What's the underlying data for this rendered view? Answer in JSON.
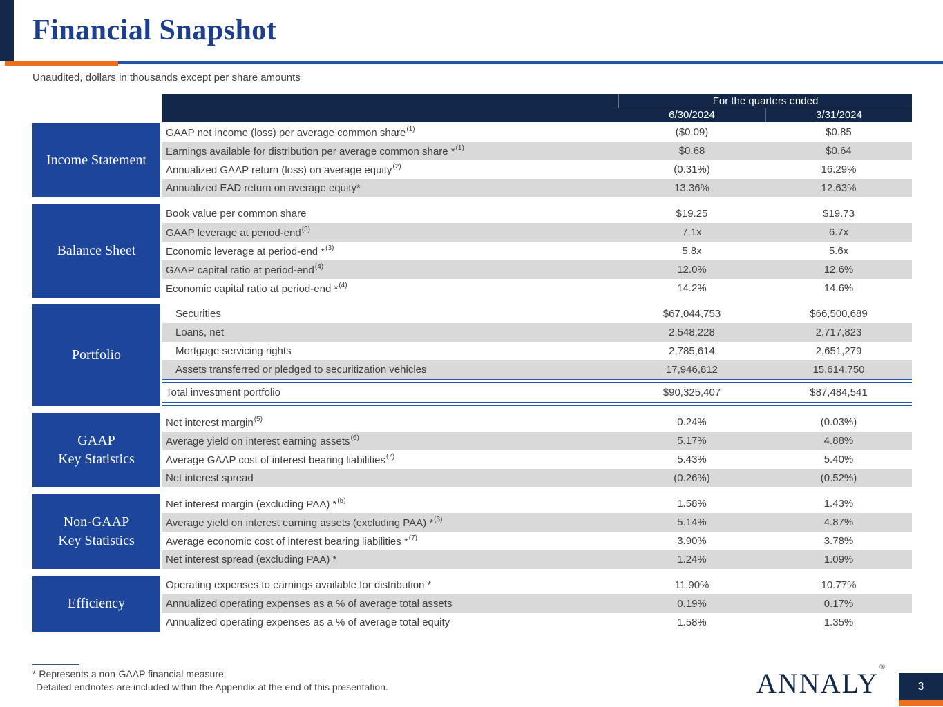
{
  "colors": {
    "navy": "#13294b",
    "header_navy": "#12274a",
    "section_blue": "#1e459c",
    "title_blue": "#1c3e8c",
    "accent_orange": "#ef6e1e",
    "rule_blue": "#2456a8",
    "row_gray": "#d9d9d9",
    "text_dark": "#3f3f3f"
  },
  "slide": {
    "title": "Financial Snapshot",
    "subtitle": "Unaudited, dollars in thousands except per share amounts",
    "footnote_line1": "* Represents a non-GAAP financial measure.",
    "footnote_line2": "Detailed endnotes are included within the Appendix at the end of this presentation.",
    "logo_text": "ANNALY",
    "logo_mark": "®",
    "page_number": "3"
  },
  "table": {
    "header": {
      "group_label": "For the quarters ended",
      "columns": [
        "6/30/2024",
        "3/31/2024"
      ]
    },
    "sections": [
      {
        "id": "income-statement",
        "label_lines": [
          "Income Statement"
        ],
        "rows": [
          {
            "label": "GAAP net income (loss) per average common share",
            "sup": "(1)",
            "values": [
              "($0.09)",
              "$0.85"
            ]
          },
          {
            "label": "Earnings available for distribution per average common share *",
            "sup": "(1)",
            "values": [
              "$0.68",
              "$0.64"
            ]
          },
          {
            "label": "Annualized GAAP return (loss) on average equity",
            "sup": "(2)",
            "values": [
              "(0.31%)",
              "16.29%"
            ]
          },
          {
            "label": "Annualized EAD return on average equity*",
            "sup": "",
            "values": [
              "13.36%",
              "12.63%"
            ]
          }
        ]
      },
      {
        "id": "balance-sheet",
        "label_lines": [
          "Balance Sheet"
        ],
        "rows": [
          {
            "label": "Book value per common share",
            "sup": "",
            "values": [
              "$19.25",
              "$19.73"
            ]
          },
          {
            "label": "GAAP leverage at period-end",
            "sup": "(3)",
            "values": [
              "7.1x",
              "6.7x"
            ]
          },
          {
            "label": "Economic leverage at period-end *",
            "sup": "(3)",
            "values": [
              "5.8x",
              "5.6x"
            ]
          },
          {
            "label": "GAAP capital ratio at period-end",
            "sup": "(4)",
            "values": [
              "12.0%",
              "12.6%"
            ]
          },
          {
            "label": "Economic capital ratio at period-end *",
            "sup": "(4)",
            "values": [
              "14.2%",
              "14.6%"
            ]
          }
        ]
      },
      {
        "id": "portfolio",
        "label_lines": [
          "Portfolio"
        ],
        "indent_rows": true,
        "rows": [
          {
            "label": "Securities",
            "sup": "",
            "values": [
              "$67,044,753",
              "$66,500,689"
            ]
          },
          {
            "label": "Loans, net",
            "sup": "",
            "values": [
              "2,548,228",
              "2,717,823"
            ]
          },
          {
            "label": "Mortgage servicing rights",
            "sup": "",
            "values": [
              "2,785,614",
              "2,651,279"
            ]
          },
          {
            "label": "Assets transferred or pledged to securitization vehicles",
            "sup": "",
            "values": [
              "17,946,812",
              "15,614,750"
            ]
          }
        ],
        "total_row": {
          "label": "Total investment portfolio",
          "sup": "",
          "values": [
            "$90,325,407",
            "$87,484,541"
          ]
        }
      },
      {
        "id": "gaap-key-statistics",
        "label_lines": [
          "GAAP",
          "Key Statistics"
        ],
        "rows": [
          {
            "label": "Net interest margin",
            "sup": "(5)",
            "values": [
              "0.24%",
              "(0.03%)"
            ]
          },
          {
            "label": "Average yield on interest earning assets",
            "sup": "(6)",
            "values": [
              "5.17%",
              "4.88%"
            ]
          },
          {
            "label": "Average GAAP cost of interest bearing liabilities",
            "sup": "(7)",
            "values": [
              "5.43%",
              "5.40%"
            ]
          },
          {
            "label": "Net interest spread",
            "sup": "",
            "values": [
              "(0.26%)",
              "(0.52%)"
            ]
          }
        ]
      },
      {
        "id": "non-gaap-key-statistics",
        "label_lines": [
          "Non-GAAP",
          "Key Statistics"
        ],
        "rows": [
          {
            "label": "Net interest margin (excluding PAA) *",
            "sup": "(5)",
            "values": [
              "1.58%",
              "1.43%"
            ]
          },
          {
            "label": "Average yield on interest earning assets (excluding PAA) *",
            "sup": "(6)",
            "values": [
              "5.14%",
              "4.87%"
            ]
          },
          {
            "label": "Average economic cost of interest bearing liabilities *",
            "sup": "(7)",
            "values": [
              "3.90%",
              "3.78%"
            ]
          },
          {
            "label": "Net interest spread (excluding PAA) *",
            "sup": "",
            "values": [
              "1.24%",
              "1.09%"
            ]
          }
        ]
      },
      {
        "id": "efficiency",
        "label_lines": [
          "Efficiency"
        ],
        "rows": [
          {
            "label": "Operating expenses to earnings available for distribution *",
            "sup": "",
            "values": [
              "11.90%",
              "10.77%"
            ]
          },
          {
            "label": "Annualized operating expenses as a % of average total assets",
            "sup": "",
            "values": [
              "0.19%",
              "0.17%"
            ]
          },
          {
            "label": "Annualized operating expenses as a % of average total equity",
            "sup": "",
            "values": [
              "1.58%",
              "1.35%"
            ]
          }
        ]
      }
    ]
  }
}
